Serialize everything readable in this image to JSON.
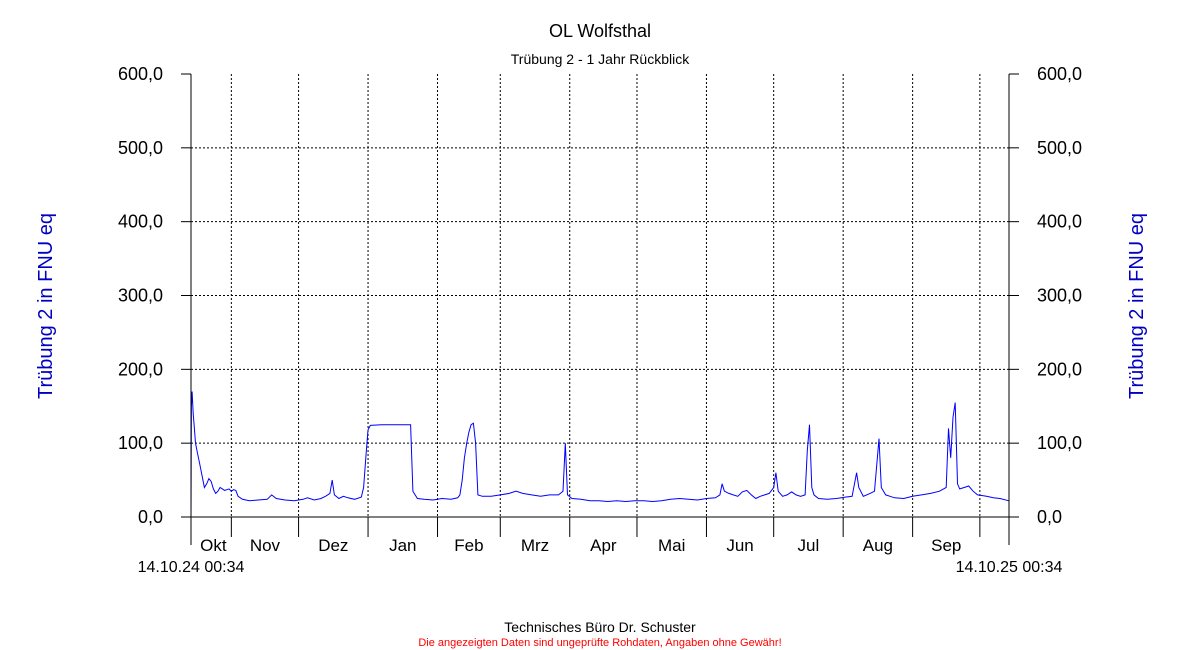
{
  "chart_data": {
    "type": "line",
    "title": "OL Wolfsthal",
    "subtitle": "Trübung 2 - 1 Jahr Rückblick",
    "ylabel_left": "Trübung 2 in FNU eq",
    "ylabel_right": "Trübung 2 in FNU eq",
    "ylim": [
      0,
      600
    ],
    "yticks": [
      "0,0",
      "100,0",
      "200,0",
      "300,0",
      "400,0",
      "500,0",
      "600,0"
    ],
    "months": [
      "Okt",
      "Nov",
      "Dez",
      "Jan",
      "Feb",
      "Mrz",
      "Apr",
      "Mai",
      "Jun",
      "Jul",
      "Aug",
      "Sep"
    ],
    "x_start_label": "14.10.24 00:34",
    "x_end_label": "14.10.25 00:34",
    "x_range_days": [
      0,
      365
    ],
    "grid": true,
    "series_color": "#0000ff",
    "series": [
      {
        "values_day_fnu": [
          [
            0,
            0
          ],
          [
            0.2,
            150
          ],
          [
            0.5,
            170
          ],
          [
            1,
            140
          ],
          [
            1.5,
            120
          ],
          [
            2,
            100
          ],
          [
            3,
            85
          ],
          [
            4,
            70
          ],
          [
            5,
            55
          ],
          [
            6,
            40
          ],
          [
            7,
            45
          ],
          [
            8,
            52
          ],
          [
            9,
            48
          ],
          [
            10,
            38
          ],
          [
            11,
            32
          ],
          [
            12,
            35
          ],
          [
            13,
            40
          ],
          [
            14,
            38
          ],
          [
            15,
            36
          ],
          [
            16,
            37
          ],
          [
            17,
            38
          ],
          [
            18,
            35
          ],
          [
            19,
            37
          ],
          [
            20,
            36
          ],
          [
            21,
            28
          ],
          [
            23,
            24
          ],
          [
            26,
            22
          ],
          [
            30,
            23
          ],
          [
            34,
            24
          ],
          [
            36,
            30
          ],
          [
            38,
            25
          ],
          [
            42,
            23
          ],
          [
            46,
            22
          ],
          [
            50,
            24
          ],
          [
            52,
            26
          ],
          [
            55,
            23
          ],
          [
            58,
            25
          ],
          [
            60,
            28
          ],
          [
            62,
            32
          ],
          [
            63,
            50
          ],
          [
            64,
            30
          ],
          [
            66,
            25
          ],
          [
            68,
            28
          ],
          [
            70,
            26
          ],
          [
            73,
            24
          ],
          [
            76,
            27
          ],
          [
            77,
            40
          ],
          [
            78,
            80
          ],
          [
            79,
            118
          ],
          [
            80,
            124
          ],
          [
            85,
            125
          ],
          [
            90,
            125
          ],
          [
            95,
            125
          ],
          [
            98,
            125
          ],
          [
            99,
            35
          ],
          [
            101,
            25
          ],
          [
            104,
            24
          ],
          [
            108,
            23
          ],
          [
            112,
            25
          ],
          [
            116,
            24
          ],
          [
            119,
            26
          ],
          [
            120,
            30
          ],
          [
            121,
            50
          ],
          [
            122,
            80
          ],
          [
            123,
            100
          ],
          [
            124,
            115
          ],
          [
            125,
            125
          ],
          [
            126,
            127
          ],
          [
            127,
            100
          ],
          [
            128,
            30
          ],
          [
            130,
            28
          ],
          [
            134,
            28
          ],
          [
            138,
            30
          ],
          [
            142,
            32
          ],
          [
            145,
            35
          ],
          [
            148,
            32
          ],
          [
            152,
            30
          ],
          [
            156,
            28
          ],
          [
            160,
            30
          ],
          [
            164,
            30
          ],
          [
            166,
            35
          ],
          [
            167,
            100
          ],
          [
            168,
            30
          ],
          [
            170,
            25
          ],
          [
            174,
            24
          ],
          [
            178,
            22
          ],
          [
            182,
            22
          ],
          [
            186,
            21
          ],
          [
            190,
            22
          ],
          [
            194,
            21
          ],
          [
            198,
            22
          ],
          [
            202,
            22
          ],
          [
            206,
            21
          ],
          [
            210,
            22
          ],
          [
            214,
            24
          ],
          [
            218,
            25
          ],
          [
            222,
            24
          ],
          [
            226,
            23
          ],
          [
            230,
            25
          ],
          [
            234,
            26
          ],
          [
            236,
            30
          ],
          [
            237,
            45
          ],
          [
            238,
            35
          ],
          [
            240,
            32
          ],
          [
            242,
            30
          ],
          [
            244,
            28
          ],
          [
            246,
            34
          ],
          [
            248,
            36
          ],
          [
            250,
            30
          ],
          [
            252,
            25
          ],
          [
            254,
            28
          ],
          [
            256,
            30
          ],
          [
            258,
            32
          ],
          [
            260,
            40
          ],
          [
            261,
            60
          ],
          [
            262,
            35
          ],
          [
            264,
            28
          ],
          [
            266,
            30
          ],
          [
            268,
            34
          ],
          [
            270,
            30
          ],
          [
            272,
            28
          ],
          [
            274,
            30
          ],
          [
            275,
            90
          ],
          [
            276,
            125
          ],
          [
            277,
            40
          ],
          [
            278,
            30
          ],
          [
            280,
            25
          ],
          [
            284,
            24
          ],
          [
            288,
            25
          ],
          [
            292,
            27
          ],
          [
            295,
            28
          ],
          [
            297,
            60
          ],
          [
            298,
            40
          ],
          [
            300,
            28
          ],
          [
            303,
            32
          ],
          [
            305,
            35
          ],
          [
            307,
            106
          ],
          [
            308,
            40
          ],
          [
            310,
            30
          ],
          [
            314,
            26
          ],
          [
            318,
            25
          ],
          [
            322,
            28
          ],
          [
            326,
            30
          ],
          [
            330,
            32
          ],
          [
            334,
            35
          ],
          [
            337,
            40
          ],
          [
            338,
            120
          ],
          [
            339,
            80
          ],
          [
            340,
            135
          ],
          [
            341,
            155
          ],
          [
            342,
            45
          ],
          [
            343,
            38
          ],
          [
            345,
            40
          ],
          [
            347,
            42
          ],
          [
            349,
            35
          ],
          [
            351,
            30
          ],
          [
            355,
            28
          ],
          [
            358,
            26
          ],
          [
            361,
            25
          ],
          [
            365,
            22
          ]
        ]
      }
    ],
    "footer": {
      "credit": "Technisches Büro Dr. Schuster",
      "disclaimer": "Die angezeigten Daten sind ungeprüfte Rohdaten, Angaben ohne Gewähr!"
    },
    "colors": {
      "axis_label": "#0000c0",
      "series": "#0000ff",
      "disclaimer": "#ff0000"
    }
  }
}
